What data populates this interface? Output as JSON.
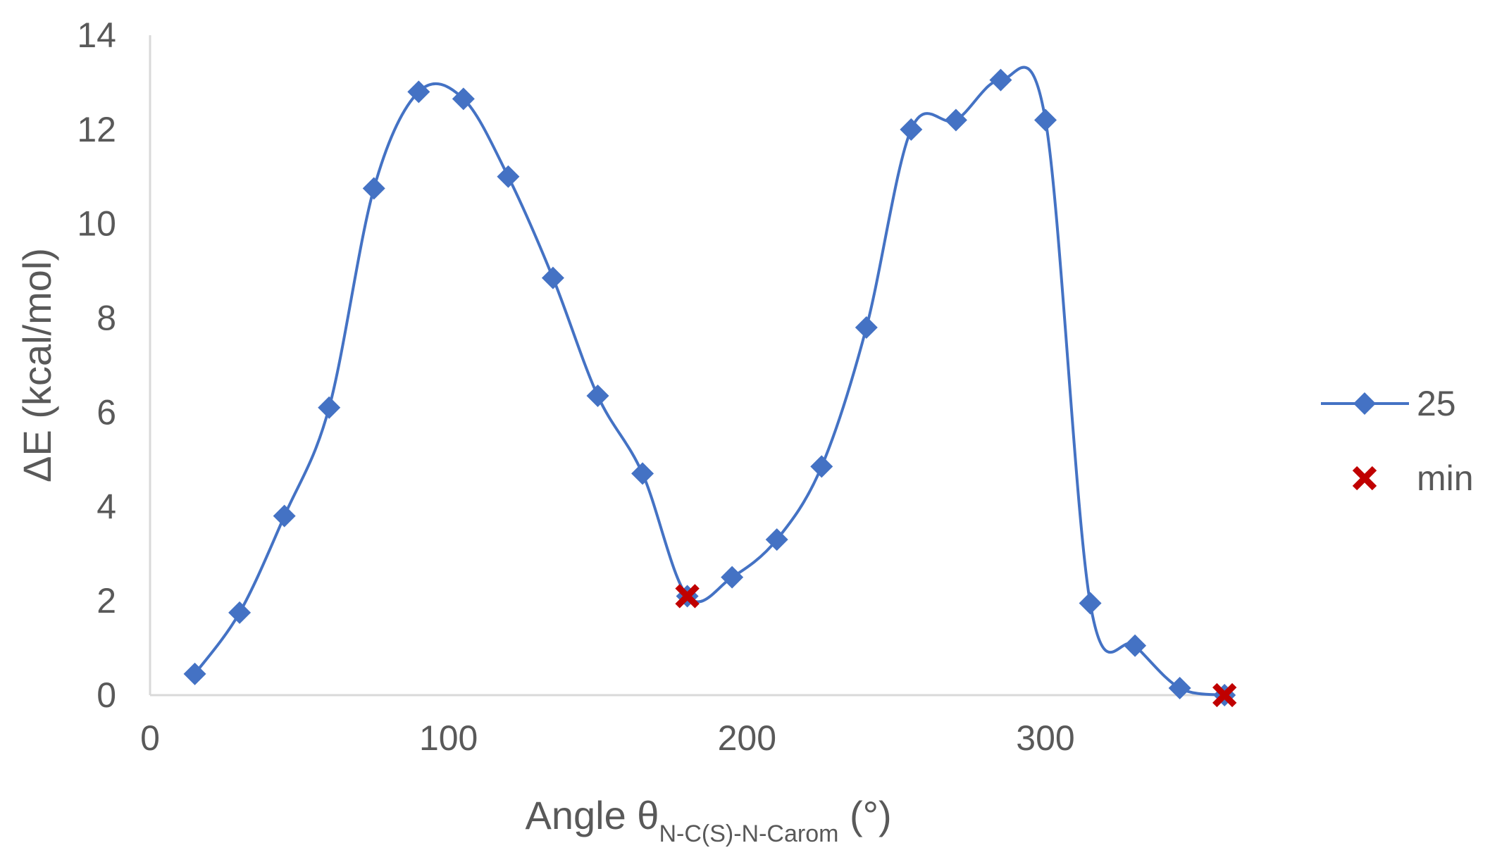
{
  "chart_data": {
    "type": "scatter",
    "x_axis": {
      "label_main": "Angle θ",
      "label_subscript": "N-C(S)-N-Carom",
      "label_suffix": " (°)",
      "range": [
        0,
        360
      ],
      "ticks": [
        0,
        100,
        200,
        300
      ]
    },
    "y_axis": {
      "label": "ΔE (kcal/mol)",
      "range": [
        0,
        14
      ],
      "ticks": [
        0,
        2,
        4,
        6,
        8,
        10,
        12,
        14
      ]
    },
    "grid": false,
    "legend_position": "right",
    "series": [
      {
        "name": "25",
        "marker": "diamond",
        "line": "smooth",
        "color": "#4472C4",
        "points": [
          [
            15,
            0.45
          ],
          [
            30,
            1.75
          ],
          [
            45,
            3.8
          ],
          [
            60,
            6.1
          ],
          [
            75,
            10.75
          ],
          [
            90,
            12.8
          ],
          [
            105,
            12.65
          ],
          [
            120,
            11.0
          ],
          [
            135,
            8.85
          ],
          [
            150,
            6.35
          ],
          [
            165,
            4.7
          ],
          [
            180,
            2.1
          ],
          [
            195,
            2.5
          ],
          [
            210,
            3.3
          ],
          [
            225,
            4.85
          ],
          [
            240,
            7.8
          ],
          [
            255,
            12.0
          ],
          [
            270,
            12.2
          ],
          [
            285,
            13.05
          ],
          [
            300,
            12.2
          ],
          [
            315,
            1.95
          ],
          [
            330,
            1.05
          ],
          [
            345,
            0.15
          ],
          [
            360,
            0.0
          ]
        ]
      },
      {
        "name": "min",
        "marker": "x",
        "line": "none",
        "color": "#C00000",
        "points": [
          [
            180,
            2.1
          ],
          [
            360,
            0.0
          ]
        ]
      }
    ]
  }
}
